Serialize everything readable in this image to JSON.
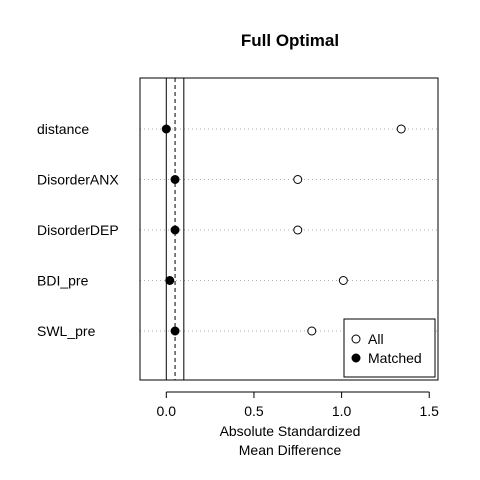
{
  "chart_data": {
    "type": "scatter",
    "title": "Full Optimal",
    "xlabel_lines": [
      "Absolute Standardized",
      "Mean Difference"
    ],
    "xlim": [
      -0.15,
      1.55
    ],
    "xticks": [
      0.0,
      0.5,
      1.0,
      1.5
    ],
    "xtick_labels": [
      "0.0",
      "0.5",
      "1.0",
      "1.5"
    ],
    "categories": [
      "distance",
      "DisorderANX",
      "DisorderDEP",
      "BDI_pre",
      "SWL_pre"
    ],
    "series": [
      {
        "name": "All",
        "marker": "open-circle",
        "values": [
          1.34,
          0.75,
          0.75,
          1.01,
          0.83
        ]
      },
      {
        "name": "Matched",
        "marker": "filled-circle",
        "values": [
          0.0,
          0.05,
          0.05,
          0.02,
          0.05
        ]
      }
    ],
    "reference_lines": {
      "solid": [
        0.0,
        0.1
      ],
      "dashed": [
        0.05
      ]
    },
    "legend": {
      "position": "bottom-right",
      "entries": [
        "All",
        "Matched"
      ]
    },
    "grid": "dotted horizontal lines per variable"
  }
}
